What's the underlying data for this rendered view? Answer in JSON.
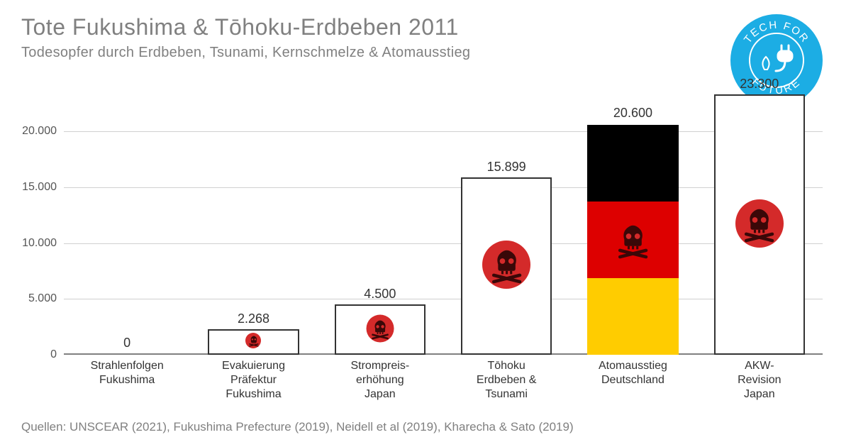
{
  "title": "Tote Fukushima & Tōhoku-Erdbeben 2011",
  "subtitle": "Todesopfer durch Erdbeben, Tsunami, Kernschmelze & Atomausstieg",
  "logo": {
    "bg_color": "#1cade4",
    "text_color": "#ffffff",
    "top": "TECH FOR",
    "bottom": "FUTURE"
  },
  "chart": {
    "type": "bar",
    "ymax": 23500,
    "yticks": [
      0,
      5000,
      10000,
      15000,
      20000
    ],
    "ytick_labels": [
      "0",
      "5.000",
      "10.000",
      "15.000",
      "20.000"
    ],
    "grid_color": "#d0d0d0",
    "axis_color": "#808080",
    "bar_border": "#333333",
    "bar_fill": "#ffffff",
    "icon_color": "#d42a2a",
    "bars": [
      {
        "label_lines": [
          "Strahlenfolgen",
          "Fukushima"
        ],
        "value": 0,
        "value_label": "0",
        "style": "plain",
        "icon": false
      },
      {
        "label_lines": [
          "Evakuierung",
          "Präfektur",
          "Fukushima"
        ],
        "value": 2268,
        "value_label": "2.268",
        "style": "japan",
        "icon": true
      },
      {
        "label_lines": [
          "Strompreis-",
          "erhöhung",
          "Japan"
        ],
        "value": 4500,
        "value_label": "4.500",
        "style": "japan",
        "icon": true
      },
      {
        "label_lines": [
          "Tōhoku",
          "Erdbeben &",
          "Tsunami"
        ],
        "value": 15899,
        "value_label": "15.899",
        "style": "japan",
        "icon": true
      },
      {
        "label_lines": [
          "Atomausstieg",
          "Deutschland"
        ],
        "value": 20600,
        "value_label": "20.600",
        "style": "germany",
        "icon": true,
        "segments": [
          {
            "color": "#ffcc00",
            "from": 0,
            "to": 6867
          },
          {
            "color": "#dd0000",
            "from": 6867,
            "to": 13733
          },
          {
            "color": "#000000",
            "from": 13733,
            "to": 20600
          }
        ]
      },
      {
        "label_lines": [
          "AKW-",
          "Revision",
          "Japan"
        ],
        "value": 23300,
        "value_label": "23.300",
        "style": "japan",
        "icon": true
      }
    ]
  },
  "source": "Quellen: UNSCEAR (2021), Fukushima Prefecture (2019), Neidell et al (2019), Kharecha & Sato (2019)"
}
